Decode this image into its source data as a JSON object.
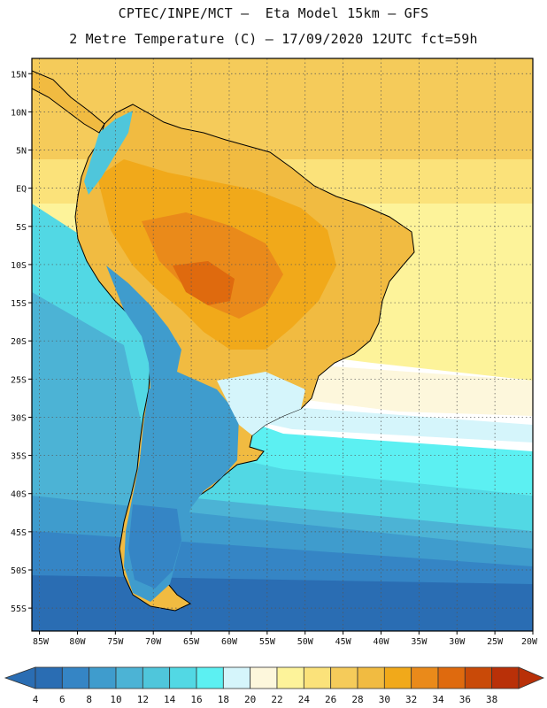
{
  "header": {
    "line1": "CPTEC/INPE/MCT –  Eta Model 15km – GFS",
    "line2": "2 Metre Temperature (C) – 17/09/2020 12UTC fct=59h"
  },
  "map": {
    "lon_range": [
      -86,
      -20
    ],
    "lat_range": [
      -58,
      17
    ],
    "lat_ticks": [
      {
        "value": 15,
        "label": "15N"
      },
      {
        "value": 10,
        "label": "10N"
      },
      {
        "value": 5,
        "label": "5N"
      },
      {
        "value": 0,
        "label": "EQ"
      },
      {
        "value": -5,
        "label": "5S"
      },
      {
        "value": -10,
        "label": "10S"
      },
      {
        "value": -15,
        "label": "15S"
      },
      {
        "value": -20,
        "label": "20S"
      },
      {
        "value": -25,
        "label": "25S"
      },
      {
        "value": -30,
        "label": "30S"
      },
      {
        "value": -35,
        "label": "35S"
      },
      {
        "value": -40,
        "label": "40S"
      },
      {
        "value": -45,
        "label": "45S"
      },
      {
        "value": -50,
        "label": "50S"
      },
      {
        "value": -55,
        "label": "55S"
      }
    ],
    "lon_ticks": [
      {
        "value": -85,
        "label": "85W"
      },
      {
        "value": -80,
        "label": "80W"
      },
      {
        "value": -75,
        "label": "75W"
      },
      {
        "value": -70,
        "label": "70W"
      },
      {
        "value": -65,
        "label": "65W"
      },
      {
        "value": -60,
        "label": "60W"
      },
      {
        "value": -55,
        "label": "55W"
      },
      {
        "value": -50,
        "label": "50W"
      },
      {
        "value": -45,
        "label": "45W"
      },
      {
        "value": -40,
        "label": "40W"
      },
      {
        "value": -35,
        "label": "35W"
      },
      {
        "value": -30,
        "label": "30W"
      },
      {
        "value": -25,
        "label": "25W"
      },
      {
        "value": -20,
        "label": "20W"
      }
    ],
    "gridlines": "dotted"
  },
  "colorbar": {
    "labels": [
      "4",
      "6",
      "8",
      "10",
      "12",
      "14",
      "16",
      "18",
      "20",
      "22",
      "24",
      "26",
      "28",
      "30",
      "32",
      "34",
      "36",
      "38"
    ],
    "colors": [
      "#2a6db3",
      "#3585c5",
      "#3f9ccd",
      "#4cb3d5",
      "#4fc6db",
      "#52d8e4",
      "#5cf0f2",
      "#d5f5fb",
      "#fdf7dc",
      "#fdf39a",
      "#fbe27a",
      "#f5cb5a",
      "#f1bb41",
      "#f1a91a",
      "#ea8a1a",
      "#df6a0e",
      "#c94a08",
      "#b93008"
    ],
    "left_arrow_color": "#2a6db3",
    "right_arrow_color": "#b93008"
  },
  "colors": {
    "ocean_deep": "#2a6db3",
    "ocean_mid": "#4cb3d5",
    "ocean_cool": "#52d8e4",
    "ocean_warm": "#fbe27a",
    "land_hot": "#f1a91a",
    "land_very_hot": "#df6a0e",
    "land_cold": "#3f9ccd"
  }
}
